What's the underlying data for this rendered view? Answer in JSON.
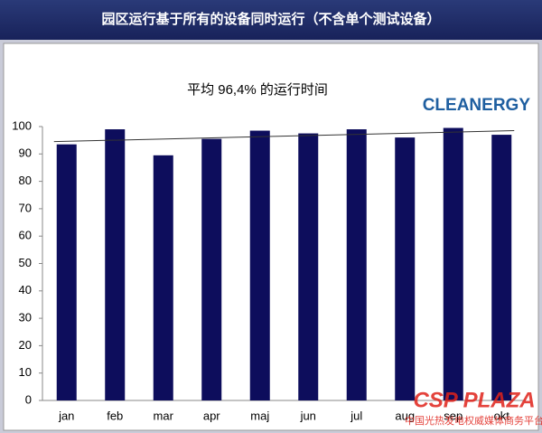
{
  "chart_data": {
    "type": "bar",
    "title": "园区运行基于所有的设备同时运行（不含单个测试设备）",
    "subtitle": "平均 96,4% 的运行时间",
    "logo": "CLEANERGY",
    "watermark": {
      "brand": "CSP PLAZA",
      "tagline": "中国光热发电权威媒体商务平台"
    },
    "categories": [
      "jan",
      "feb",
      "mar",
      "apr",
      "maj",
      "jun",
      "jul",
      "aug",
      "sep",
      "okt"
    ],
    "values": [
      93.5,
      99,
      89.5,
      95.5,
      98.5,
      97.5,
      99,
      96,
      99.5,
      97
    ],
    "color": "#0d0d5c",
    "trend": [
      94.5,
      98.5
    ],
    "trend_color": "#333333",
    "ylim": [
      0,
      100
    ],
    "yticks": [
      0,
      10,
      20,
      30,
      40,
      50,
      60,
      70,
      80,
      90,
      100
    ],
    "grid": false
  }
}
